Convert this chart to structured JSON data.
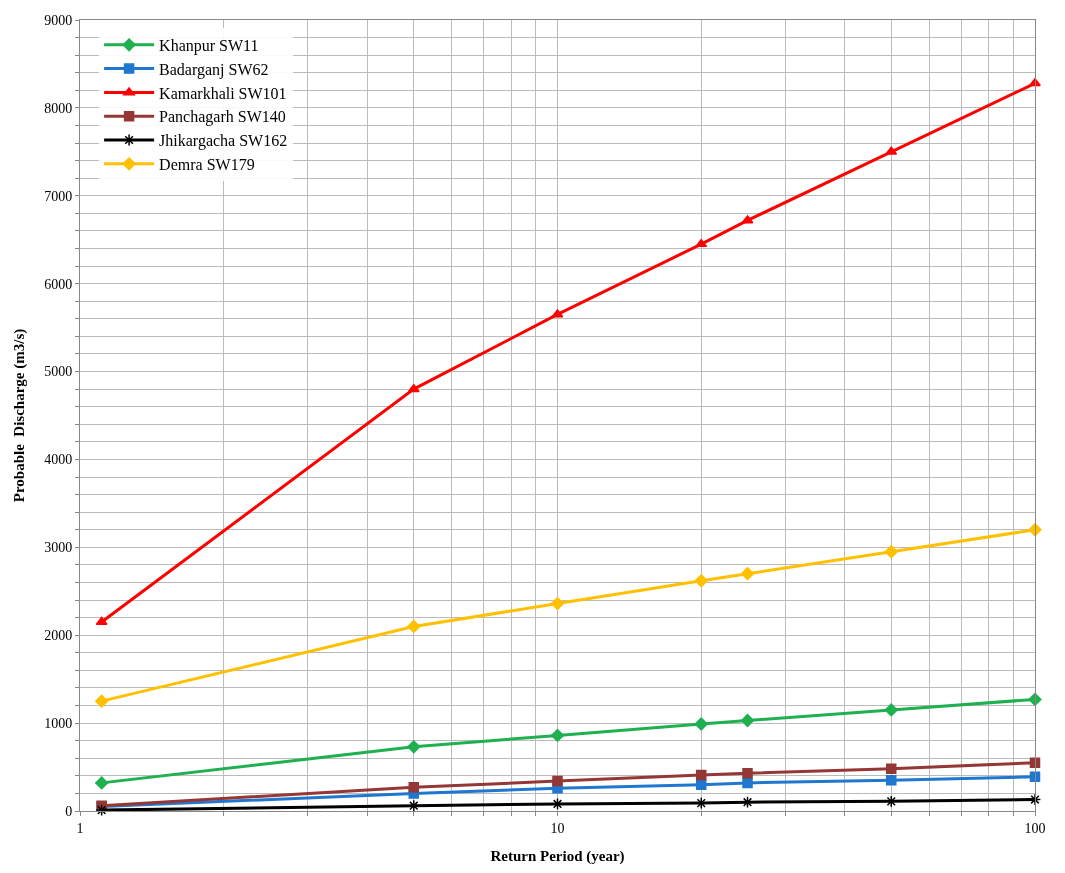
{
  "chart_data": {
    "type": "line",
    "xlabel": "Return Period (year)",
    "ylabel": "Probable  Discharge (m3/s)",
    "log": "x",
    "x": [
      1.11,
      5,
      10,
      20,
      25,
      50,
      100
    ],
    "xlim": [
      1,
      100
    ],
    "xticks": [
      1,
      {
        "value": 2,
        "label": null
      },
      {
        "value": 3,
        "label": null
      },
      {
        "value": 4,
        "label": null
      },
      {
        "value": 5,
        "label": null
      },
      {
        "value": 6,
        "label": null
      },
      {
        "value": 7,
        "label": null
      },
      {
        "value": 8,
        "label": null
      },
      {
        "value": 9,
        "label": null
      },
      10,
      {
        "value": 20,
        "label": null
      },
      {
        "value": 30,
        "label": null
      },
      {
        "value": 40,
        "label": null
      },
      {
        "value": 50,
        "label": null
      },
      {
        "value": 60,
        "label": null
      },
      {
        "value": 70,
        "label": null
      },
      {
        "value": 80,
        "label": null
      },
      {
        "value": 90,
        "label": null
      },
      100
    ],
    "ylim": [
      0,
      9000
    ],
    "yticks": [
      0,
      {
        "value": 200,
        "label": null
      },
      {
        "value": 400,
        "label": null
      },
      {
        "value": 600,
        "label": null
      },
      {
        "value": 800,
        "label": null
      },
      1000,
      {
        "value": 1200,
        "label": null
      },
      {
        "value": 1400,
        "label": null
      },
      {
        "value": 1600,
        "label": null
      },
      {
        "value": 1800,
        "label": null
      },
      2000,
      {
        "value": 2200,
        "label": null
      },
      {
        "value": 2400,
        "label": null
      },
      {
        "value": 2600,
        "label": null
      },
      {
        "value": 2800,
        "label": null
      },
      3000,
      {
        "value": 3200,
        "label": null
      },
      {
        "value": 3400,
        "label": null
      },
      {
        "value": 3600,
        "label": null
      },
      {
        "value": 3800,
        "label": null
      },
      4000,
      {
        "value": 4200,
        "label": null
      },
      {
        "value": 4400,
        "label": null
      },
      {
        "value": 4600,
        "label": null
      },
      {
        "value": 4800,
        "label": null
      },
      5000,
      {
        "value": 5200,
        "label": null
      },
      {
        "value": 5400,
        "label": null
      },
      {
        "value": 5600,
        "label": null
      },
      {
        "value": 5800,
        "label": null
      },
      6000,
      {
        "value": 6200,
        "label": null
      },
      {
        "value": 6400,
        "label": null
      },
      {
        "value": 6600,
        "label": null
      },
      {
        "value": 6800,
        "label": null
      },
      7000,
      {
        "value": 7200,
        "label": null
      },
      {
        "value": 7400,
        "label": null
      },
      {
        "value": 7600,
        "label": null
      },
      {
        "value": 7800,
        "label": null
      },
      8000,
      {
        "value": 8200,
        "label": null
      },
      {
        "value": 8400,
        "label": null
      },
      {
        "value": 8600,
        "label": null
      },
      {
        "value": 8800,
        "label": null
      },
      9000
    ],
    "grid": true,
    "legend": "top left",
    "series": [
      {
        "name": "Khanpur SW11",
        "color": "#1fb050",
        "marker": "diamond",
        "values": [
          320,
          730,
          860,
          990,
          1030,
          1150,
          1270
        ]
      },
      {
        "name": "Badarganj SW62",
        "color": "#1f77d0",
        "marker": "square",
        "values": [
          50,
          200,
          260,
          300,
          320,
          350,
          390
        ]
      },
      {
        "name": "Kamarkhali SW101",
        "color": "#ff0000",
        "marker": "triangle",
        "values": [
          2150,
          4800,
          5650,
          6450,
          6720,
          7500,
          8280
        ]
      },
      {
        "name": "Panchagarh SW140",
        "color": "#953735",
        "marker": "square",
        "values": [
          60,
          270,
          340,
          410,
          430,
          480,
          550
        ]
      },
      {
        "name": "Jhikargacha SW162",
        "color": "#000000",
        "marker": "cross",
        "values": [
          10,
          60,
          80,
          90,
          100,
          110,
          130
        ]
      },
      {
        "name": "Demra SW179",
        "color": "#ffc000",
        "marker": "diamond",
        "values": [
          1250,
          2100,
          2360,
          2620,
          2700,
          2950,
          3200
        ]
      }
    ]
  }
}
